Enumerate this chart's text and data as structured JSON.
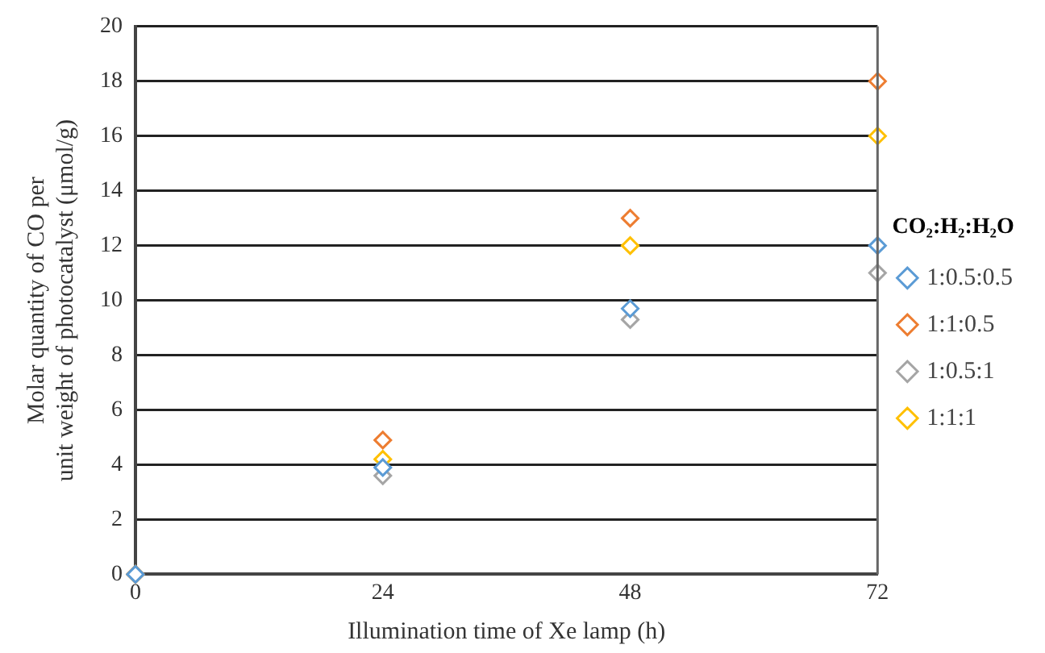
{
  "chart_data": {
    "type": "scatter",
    "xlabel": "Illumination time of Xe lamp (h)",
    "ylabel": "Molar quantity of CO per unit weight of photocatalyst (μmol/g)",
    "legend_title": "CO₂:H₂:H₂O",
    "x": [
      0,
      24,
      48,
      72
    ],
    "xlim": [
      0,
      72
    ],
    "xticks": [
      0,
      24,
      48,
      72
    ],
    "ylim": [
      0,
      20
    ],
    "yticks": [
      0,
      2,
      4,
      6,
      8,
      10,
      12,
      14,
      16,
      18,
      20
    ],
    "grid": "y",
    "legend": "right",
    "marker": "diamond",
    "series": [
      {
        "name": "1:0.5:0.5",
        "color": "#5b9bd5",
        "values": [
          0,
          3.9,
          9.7,
          12
        ]
      },
      {
        "name": "1:1:0.5",
        "color": "#ed7d31",
        "values": [
          0,
          4.9,
          13,
          18
        ]
      },
      {
        "name": "1:0.5:1",
        "color": "#a5a5a5",
        "values": [
          0,
          3.6,
          9.3,
          11
        ]
      },
      {
        "name": "1:1:1",
        "color": "#ffc000",
        "values": [
          0,
          4.2,
          12,
          16
        ]
      }
    ]
  }
}
